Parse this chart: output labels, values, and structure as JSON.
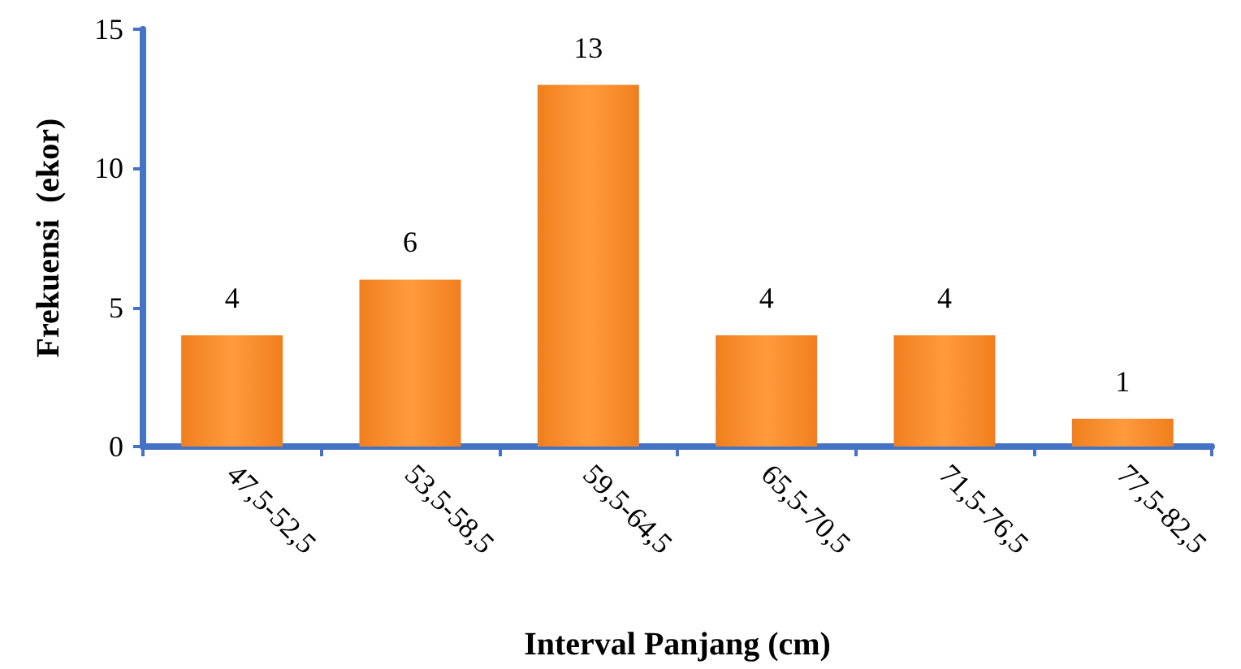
{
  "chart_data": {
    "type": "bar",
    "categories": [
      "47,5-52,5",
      "53,5-58,5",
      "59,5-64,5",
      "65,5-70,5",
      "71,5-76,5",
      "77,5-82,5"
    ],
    "values": [
      4,
      6,
      13,
      4,
      4,
      1
    ],
    "color": "#f07f1e",
    "xlabel": "Interval Panjang (cm)",
    "ylabel": "Frekuensi  (ekor)",
    "ylim": [
      0,
      15
    ],
    "yticks": [
      0,
      5,
      10,
      15
    ],
    "grid": false,
    "data_labels": true
  }
}
